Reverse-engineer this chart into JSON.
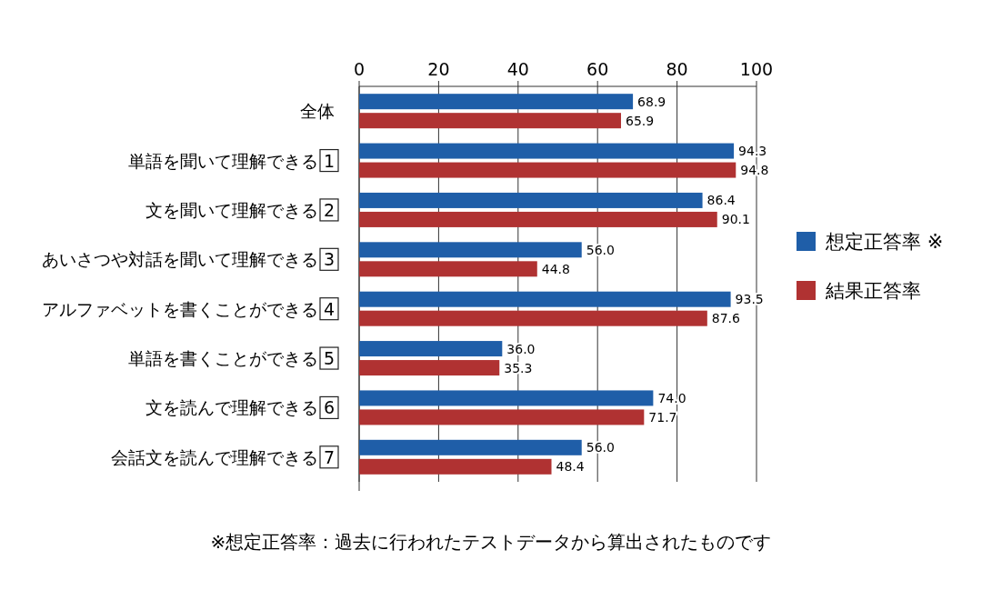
{
  "chart_data": {
    "type": "bar",
    "orientation": "horizontal",
    "categories": [
      "全体",
      "単語を聞いて理解できる 1",
      "文を聞いて理解できる 2",
      "あいさつや対話を聞いて理解できる 3",
      "アルファベットを書くことができる 4",
      "単語を書くことができる 5",
      "文を読んで理解できる 6",
      "会話文を読んで理解できる 7"
    ],
    "series": [
      {
        "name": "想定正答率 ※",
        "color": "#1f5ea8",
        "values": [
          68.9,
          94.3,
          86.4,
          56.0,
          93.5,
          36.0,
          74.0,
          56.0
        ],
        "value_labels": [
          "68.9",
          "94.3",
          "86.4",
          "56.0",
          "93.5",
          "36.0",
          "74.0",
          "56.0"
        ]
      },
      {
        "name": "結果正答率",
        "color": "#b03232",
        "values": [
          65.9,
          94.8,
          90.1,
          44.8,
          87.6,
          35.3,
          71.7,
          48.4
        ],
        "value_labels": [
          "65.9",
          "94.8",
          "90.1",
          "44.8",
          "87.6",
          "35.3",
          "71.7",
          "48.4"
        ]
      }
    ],
    "xlim": [
      0,
      100
    ],
    "xticks": [
      0,
      20,
      40,
      60,
      80,
      100
    ],
    "grid": "x",
    "legend": "right",
    "annotations": [
      "※想定正答率：過去に行われたテストデータから算出されたものです"
    ]
  }
}
